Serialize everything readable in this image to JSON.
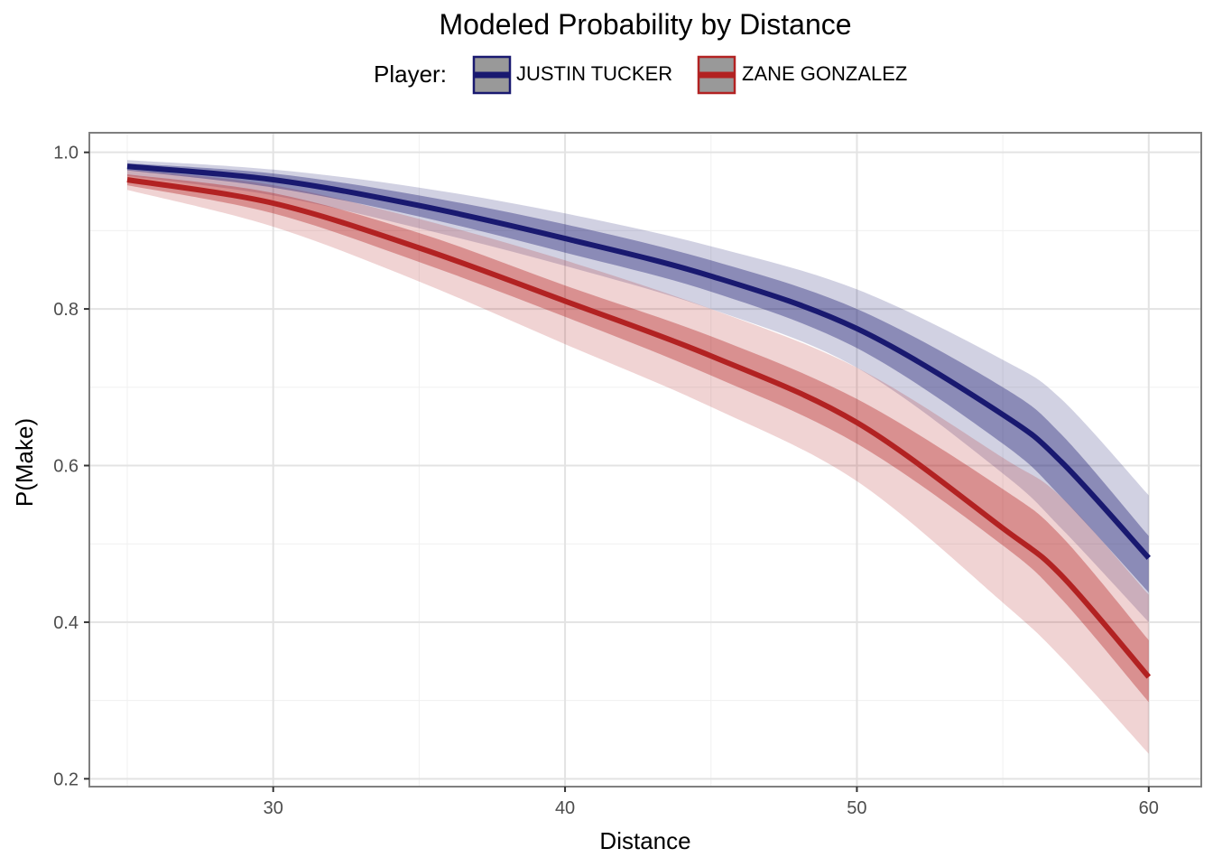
{
  "chart_data": {
    "type": "line",
    "title": "Modeled Probability by Distance",
    "xlabel": "Distance",
    "ylabel": "P(Make)",
    "xlim": [
      23.7,
      61.8
    ],
    "ylim": [
      0.19,
      1.025
    ],
    "x_ticks": [
      30,
      40,
      50,
      60
    ],
    "y_ticks": [
      0.2,
      0.4,
      0.6,
      0.8,
      1.0
    ],
    "x_tick_labels": [
      "30",
      "40",
      "50",
      "60"
    ],
    "y_tick_labels": [
      "0.2",
      "0.4",
      "0.6",
      "0.8",
      "1.0"
    ],
    "grid": true,
    "legend": {
      "title": "Player:",
      "position": "top"
    },
    "x": [
      25,
      30,
      35,
      40,
      45,
      50,
      55,
      57,
      60
    ],
    "series": [
      {
        "name": "JUSTIN TUCKER",
        "color": "#191970",
        "values": [
          0.982,
          0.965,
          0.932,
          0.89,
          0.842,
          0.775,
          0.665,
          0.605,
          0.482
        ],
        "inner_band": {
          "lower": [
            0.977,
            0.955,
            0.918,
            0.872,
            0.822,
            0.75,
            0.628,
            0.56,
            0.438
          ],
          "upper": [
            0.986,
            0.973,
            0.945,
            0.908,
            0.862,
            0.8,
            0.7,
            0.64,
            0.51
          ]
        },
        "outer_band": {
          "lower": [
            0.97,
            0.945,
            0.903,
            0.855,
            0.8,
            0.725,
            0.59,
            0.52,
            0.4
          ],
          "upper": [
            0.99,
            0.978,
            0.955,
            0.922,
            0.88,
            0.825,
            0.735,
            0.685,
            0.562
          ]
        }
      },
      {
        "name": "ZANE GONZALEZ",
        "color": "#b22222",
        "values": [
          0.965,
          0.935,
          0.878,
          0.81,
          0.74,
          0.655,
          0.52,
          0.46,
          0.33
        ],
        "inner_band": {
          "lower": [
            0.958,
            0.922,
            0.86,
            0.79,
            0.715,
            0.628,
            0.498,
            0.43,
            0.298
          ],
          "upper": [
            0.972,
            0.948,
            0.897,
            0.83,
            0.765,
            0.685,
            0.57,
            0.51,
            0.377
          ]
        },
        "outer_band": {
          "lower": [
            0.952,
            0.905,
            0.835,
            0.755,
            0.675,
            0.58,
            0.425,
            0.355,
            0.232
          ],
          "upper": [
            0.978,
            0.958,
            0.915,
            0.862,
            0.8,
            0.725,
            0.61,
            0.56,
            0.435
          ]
        }
      }
    ]
  }
}
